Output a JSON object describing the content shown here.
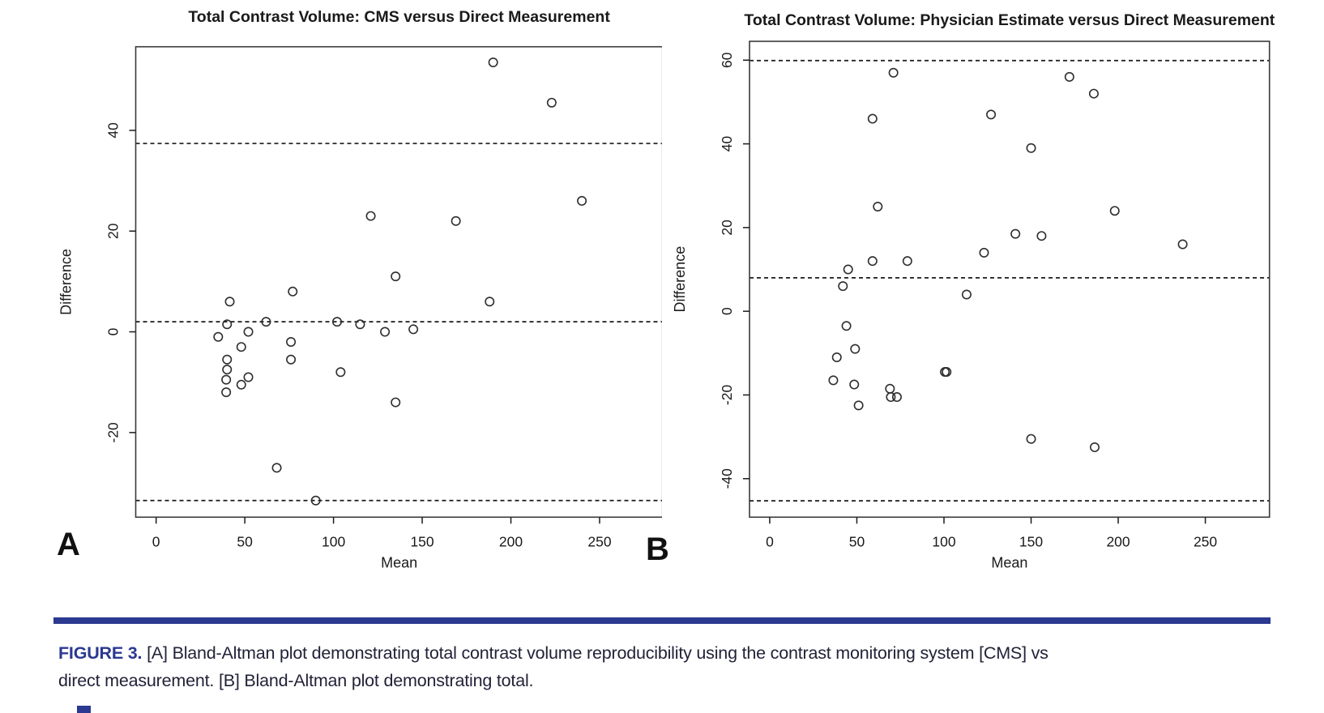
{
  "figure": {
    "panel_a_letter": "A",
    "panel_b_letter": "B",
    "caption": {
      "label": "FIGURE 3.",
      "line1_rest": "[A] Bland-Altman plot demonstrating total contrast volume reproducibility using the contrast monitoring system [CMS] vs",
      "line2": "direct measurement. [B] Bland-Altman plot demonstrating total."
    },
    "colors": {
      "accent_navy": "#2b3990",
      "caption_text": "#222238",
      "plot_ink": "#1a1a1a",
      "point_stroke": "#2e2e2e"
    }
  },
  "chart_data": [
    {
      "id": "A",
      "type": "scatter",
      "title": "Total Contrast Volume: CMS versus Direct Measurement",
      "xlabel": "Mean",
      "ylabel": "Difference",
      "xlim": [
        -11.5,
        285.5
      ],
      "ylim": [
        -36.8,
        56.6
      ],
      "xticks": [
        0,
        50,
        100,
        150,
        200,
        250
      ],
      "yticks": [
        -20,
        0,
        20,
        40
      ],
      "grid": false,
      "marker": "open-circle",
      "hlines": {
        "mean": 2.0,
        "upper_loa": 37.4,
        "lower_loa": -33.5
      },
      "points": [
        [
          190,
          53.5
        ],
        [
          223,
          45.5
        ],
        [
          240,
          26
        ],
        [
          121,
          23
        ],
        [
          169,
          22
        ],
        [
          135,
          11
        ],
        [
          188,
          6
        ],
        [
          41.5,
          6
        ],
        [
          77,
          8
        ],
        [
          40,
          1.5
        ],
        [
          62,
          2
        ],
        [
          102,
          2
        ],
        [
          115,
          1.5
        ],
        [
          35,
          -1
        ],
        [
          52,
          0
        ],
        [
          129,
          0
        ],
        [
          145,
          0.5
        ],
        [
          48,
          -3
        ],
        [
          76,
          -2
        ],
        [
          76,
          -5.5
        ],
        [
          40,
          -5.5
        ],
        [
          40,
          -7.5
        ],
        [
          39.5,
          -9.5
        ],
        [
          48,
          -10.5
        ],
        [
          52,
          -9
        ],
        [
          39.5,
          -12
        ],
        [
          104,
          -8
        ],
        [
          135,
          -14
        ],
        [
          68,
          -27
        ],
        [
          90,
          -33.5
        ]
      ]
    },
    {
      "id": "B",
      "type": "scatter",
      "title": "Total Contrast Volume: Physician Estimate versus Direct Measurement",
      "xlabel": "Mean",
      "ylabel": "Difference",
      "xlim": [
        -11.6,
        286.8
      ],
      "ylim": [
        -49.2,
        64.5
      ],
      "xticks": [
        0,
        50,
        100,
        150,
        200,
        250
      ],
      "yticks": [
        -40,
        -20,
        0,
        20,
        40,
        60
      ],
      "grid": false,
      "marker": "open-circle",
      "hlines": {
        "mean": 8.0,
        "upper_loa": 59.9,
        "lower_loa": -45.3
      },
      "points": [
        [
          71,
          57
        ],
        [
          172,
          56
        ],
        [
          186,
          52
        ],
        [
          127,
          47
        ],
        [
          59,
          46
        ],
        [
          150,
          39
        ],
        [
          62,
          25
        ],
        [
          198,
          24
        ],
        [
          141,
          18.5
        ],
        [
          156,
          18
        ],
        [
          237,
          16
        ],
        [
          123,
          14
        ],
        [
          59,
          12
        ],
        [
          79,
          12
        ],
        [
          45,
          10
        ],
        [
          42,
          6
        ],
        [
          113,
          4
        ],
        [
          44,
          -3.5
        ],
        [
          49,
          -9
        ],
        [
          38.5,
          -11
        ],
        [
          100.5,
          -14.5
        ],
        [
          101.5,
          -14.5
        ],
        [
          36.5,
          -16.5
        ],
        [
          48.5,
          -17.5
        ],
        [
          69,
          -18.5
        ],
        [
          69.5,
          -20.5
        ],
        [
          73,
          -20.5
        ],
        [
          51,
          -22.5
        ],
        [
          150,
          -30.5
        ],
        [
          186.5,
          -32.5
        ]
      ]
    }
  ]
}
